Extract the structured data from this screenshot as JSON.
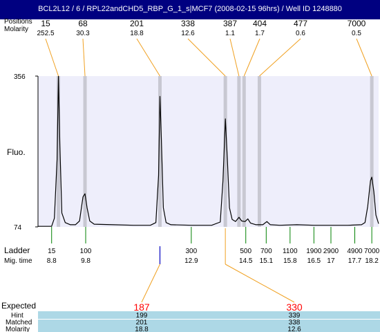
{
  "title": "BCL2L12 / 6 / RPL22andCHD5_RBP_G_1_s|MCF7 (2008-02-15 96hrs) / Well ID 1248880",
  "colors": {
    "title_bg": "#000080",
    "plot_bg": "#eeeefb",
    "peak_band": "#c8c8d2",
    "connector": "#f0a020",
    "ladder_tick": "#008000",
    "expected_tick": "#0000c0",
    "expected_text": "#ff0000",
    "hint_row": "#add8e6"
  },
  "header": {
    "positions_label": "Positions",
    "molarity_label": "Molarity",
    "peaks": [
      {
        "position": "15",
        "molarity": "252.5"
      },
      {
        "position": "68",
        "molarity": "30.3"
      },
      {
        "position": "201",
        "molarity": "18.8"
      },
      {
        "position": "338",
        "molarity": "12.6"
      },
      {
        "position": "387",
        "molarity": "1.1"
      },
      {
        "position": "404",
        "molarity": "1.7"
      },
      {
        "position": "477",
        "molarity": "0.6"
      },
      {
        "position": "7000",
        "molarity": "0.5"
      }
    ]
  },
  "chart_data": {
    "type": "line",
    "ylabel": "Fluo.",
    "ylim": [
      74,
      356
    ],
    "ytick_labels": [
      "356",
      "74"
    ],
    "x_axis": "migration time",
    "xlim": [
      8.4,
      18.4
    ],
    "trace": [
      [
        8.4,
        75
      ],
      [
        8.8,
        75
      ],
      [
        8.88,
        90
      ],
      [
        8.96,
        200
      ],
      [
        9.0,
        356
      ],
      [
        9.04,
        230
      ],
      [
        9.1,
        100
      ],
      [
        9.2,
        82
      ],
      [
        9.35,
        78
      ],
      [
        9.5,
        78
      ],
      [
        9.62,
        85
      ],
      [
        9.72,
        130
      ],
      [
        9.78,
        136
      ],
      [
        9.84,
        110
      ],
      [
        9.92,
        85
      ],
      [
        10.05,
        79
      ],
      [
        10.6,
        78
      ],
      [
        11.2,
        77
      ],
      [
        11.7,
        77
      ],
      [
        11.86,
        82
      ],
      [
        11.94,
        170
      ],
      [
        11.98,
        318
      ],
      [
        12.02,
        240
      ],
      [
        12.08,
        110
      ],
      [
        12.16,
        82
      ],
      [
        12.3,
        78
      ],
      [
        12.9,
        77
      ],
      [
        13.5,
        77
      ],
      [
        13.75,
        83
      ],
      [
        13.83,
        160
      ],
      [
        13.9,
        276
      ],
      [
        13.96,
        200
      ],
      [
        14.02,
        110
      ],
      [
        14.1,
        88
      ],
      [
        14.2,
        84
      ],
      [
        14.3,
        92
      ],
      [
        14.38,
        85
      ],
      [
        14.48,
        84
      ],
      [
        14.56,
        89
      ],
      [
        14.64,
        81
      ],
      [
        14.8,
        78
      ],
      [
        15.0,
        78
      ],
      [
        15.12,
        84
      ],
      [
        15.22,
        78
      ],
      [
        15.5,
        77
      ],
      [
        16.0,
        78
      ],
      [
        16.5,
        77
      ],
      [
        17.0,
        77
      ],
      [
        17.5,
        77
      ],
      [
        17.9,
        78
      ],
      [
        18.0,
        82
      ],
      [
        18.08,
        112
      ],
      [
        18.16,
        160
      ],
      [
        18.2,
        167
      ],
      [
        18.26,
        140
      ],
      [
        18.32,
        96
      ],
      [
        18.4,
        80
      ]
    ],
    "peak_markers": [
      {
        "position": "15",
        "mig_time": 9.0
      },
      {
        "position": "68",
        "mig_time": 9.78
      },
      {
        "position": "201",
        "mig_time": 11.98
      },
      {
        "position": "338",
        "mig_time": 13.9
      },
      {
        "position": "387",
        "mig_time": 14.3
      },
      {
        "position": "404",
        "mig_time": 14.45
      },
      {
        "position": "477",
        "mig_time": 14.9
      },
      {
        "position": "7000",
        "mig_time": 18.2
      }
    ]
  },
  "ladder": {
    "label": "Ladder",
    "mig_label": "Mig. time",
    "marks": [
      {
        "size": "15",
        "mig_time": "8.8",
        "t": 8.8
      },
      {
        "size": "100",
        "mig_time": "9.8",
        "t": 9.8
      },
      {
        "size": "300",
        "mig_time": "12.9",
        "t": 12.9
      },
      {
        "size": "500",
        "mig_time": "14.5",
        "t": 14.5
      },
      {
        "size": "700",
        "mig_time": "15.1",
        "t": 15.1
      },
      {
        "size": "1100",
        "mig_time": "15.8",
        "t": 15.8
      },
      {
        "size": "1900",
        "mig_time": "16.5",
        "t": 16.5
      },
      {
        "size": "2900",
        "mig_time": "17",
        "t": 17.0
      },
      {
        "size": "4900",
        "mig_time": "17.7",
        "t": 17.7
      },
      {
        "size": "7000",
        "mig_time": "18.2",
        "t": 18.2
      }
    ]
  },
  "expected": {
    "expected_label": "Expected",
    "hint_label": "Hint",
    "matched_label": "Matched",
    "molarity_label": "Molarity",
    "items": [
      {
        "expected": "187",
        "hint": "199",
        "matched": "201",
        "molarity": "18.8",
        "mig_time": 11.98,
        "matched_peak_time": 11.98
      },
      {
        "expected": "330",
        "hint": "339",
        "matched": "338",
        "molarity": "12.6",
        "mig_time": 13.9,
        "matched_peak_time": 13.9
      }
    ]
  }
}
